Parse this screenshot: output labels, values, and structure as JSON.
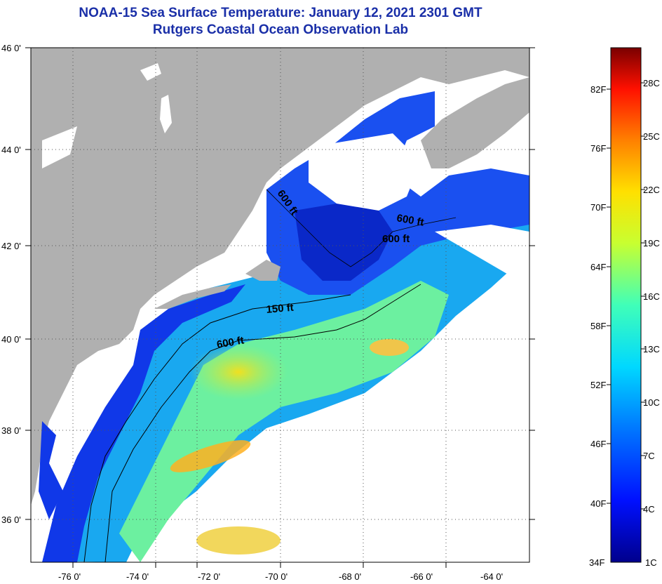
{
  "title": "NOAA-15 Sea Surface Temperature:  January 12, 2021 2301 GMT",
  "subtitle": "Rutgers Coastal Ocean Observation Lab",
  "map": {
    "lat_labels": [
      "46 0'",
      "44 0'",
      "42 0'",
      "40 0'",
      "38 0'",
      "36 0'"
    ],
    "lon_labels": [
      "-76 0'",
      "-74 0'",
      "-72 0'",
      "-70 0'",
      "-68 0'",
      "-66 0'",
      "-64 0'"
    ],
    "contour_labels": [
      "600 ft",
      "600 ft",
      "600 ft",
      "150 ft",
      "600 ft"
    ],
    "colors": {
      "land": "#b0b0b0",
      "cloud": "#ffffff",
      "grid": "#555555"
    }
  },
  "colorbar": {
    "fahrenheit": [
      "82F",
      "76F",
      "70F",
      "64F",
      "58F",
      "52F",
      "46F",
      "40F",
      "34F"
    ],
    "celsius": [
      "28C",
      "25C",
      "22C",
      "19C",
      "16C",
      "13C",
      "10C",
      "7C",
      "4C",
      "1C"
    ]
  }
}
